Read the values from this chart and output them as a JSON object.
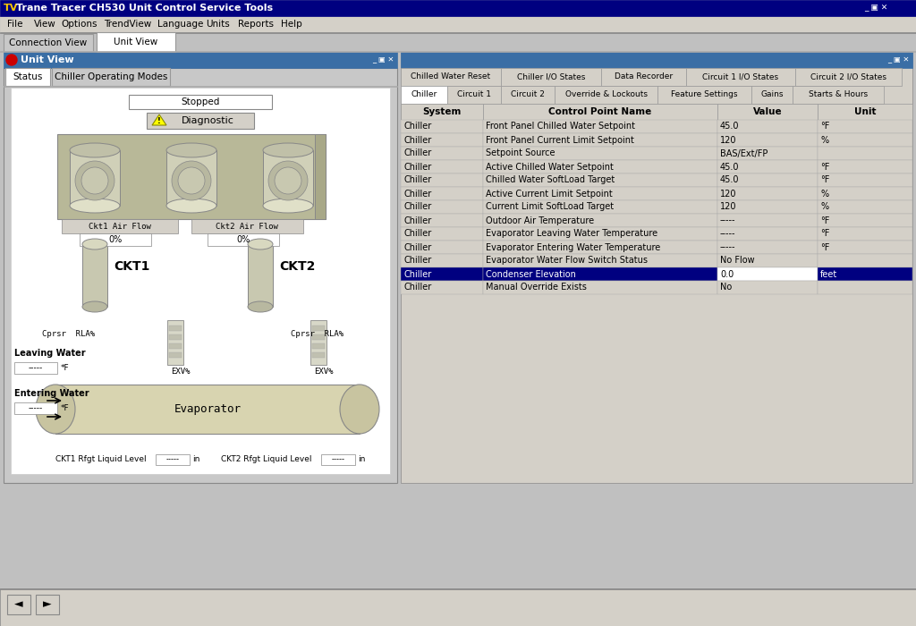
{
  "title_bar": "Trane Tracer CH530 Unit Control Service Tools",
  "title_bar_color": "#000080",
  "title_bar_text_color": "#ffffff",
  "menu_items": [
    "File",
    "View",
    "Options",
    "TrendView",
    "Language",
    "Units",
    "Reports",
    "Help"
  ],
  "tabs_top": [
    "Connection View",
    "Unit View"
  ],
  "active_tab_top": "Unit View",
  "left_panel_title": "Unit View",
  "left_tabs": [
    "Status",
    "Chiller Operating Modes"
  ],
  "status_text": "Stopped",
  "diagnostic_text": "Diagnostic",
  "ckt1_label": "CKT1",
  "ckt2_label": "CKT2",
  "ckt1_airflow_label": "Ckt1 Air Flow",
  "ckt2_airflow_label": "Ckt2 Air Flow",
  "ckt1_airflow_value": "0%",
  "ckt2_airflow_value": "0%",
  "cprsr_label": "Cprsr  RLA%",
  "exv_label": "EXV%",
  "evaporator_label": "Evaporator",
  "leaving_water_label": "Leaving Water",
  "leaving_water_value": "-----",
  "leaving_water_unit": "*F",
  "entering_water_label": "Entering Water",
  "entering_water_value": "-----",
  "entering_water_unit": "*F",
  "ckt1_rfgt_label": "CKT1 Rfgt Liquid Level",
  "ckt2_rfgt_label": "CKT2 Rfgt Liquid Level",
  "rfgt_value": "-----",
  "rfgt_unit": "in",
  "right_tabs_row1": [
    "Chilled Water Reset",
    "Chiller I/O States",
    "Data Recorder",
    "Circuit 1 I/O States",
    "Circuit 2 I/O States"
  ],
  "right_tabs_row2": [
    "Chiller",
    "Circuit 1",
    "Circuit 2",
    "Override & Lockouts",
    "Feature Settings",
    "Gains",
    "Starts & Hours"
  ],
  "active_right_tab2": "Chiller",
  "table_headers": [
    "System",
    "Control Point Name",
    "Value",
    "Unit"
  ],
  "table_rows": [
    [
      "Chiller",
      "Front Panel Chilled Water Setpoint",
      "45.0",
      "*F"
    ],
    [
      "Chiller",
      "Front Panel Current Limit Setpoint",
      "120",
      "%"
    ],
    [
      "Chiller",
      "Setpoint Source",
      "BAS/Ext/FP",
      ""
    ],
    [
      "Chiller",
      "Active Chilled Water Setpoint",
      "45.0",
      "*F"
    ],
    [
      "Chiller",
      "Chilled Water SoftLoad Target",
      "45.0",
      "*F"
    ],
    [
      "Chiller",
      "Active Current Limit Setpoint",
      "120",
      "%"
    ],
    [
      "Chiller",
      "Current Limit SoftLoad Target",
      "120",
      "%"
    ],
    [
      "Chiller",
      "Outdoor Air Temperature",
      "-----",
      "*F"
    ],
    [
      "Chiller",
      "Evaporator Leaving Water Temperature",
      "-----",
      "*F"
    ],
    [
      "Chiller",
      "Evaporator Entering Water Temperature",
      "-----",
      "*F"
    ],
    [
      "Chiller",
      "Evaporator Water Flow Switch Status",
      "No Flow",
      ""
    ],
    [
      "Chiller",
      "Condenser Elevation",
      "0.0",
      "feet"
    ],
    [
      "Chiller",
      "Manual Override Exists",
      "No",
      ""
    ]
  ],
  "highlighted_row": 11,
  "highlight_color": "#000080",
  "highlight_text_color": "#ffffff",
  "bg_color": "#c0c0c0",
  "panel_bg": "#d4d0c8",
  "nav_bar_color": "#3a6ea5",
  "pipe_color": "#8B3A1A",
  "condenser_bg": "#c8c8a8",
  "evap_color": "#d8d4b0",
  "compressor_color": "#c8c8b0"
}
